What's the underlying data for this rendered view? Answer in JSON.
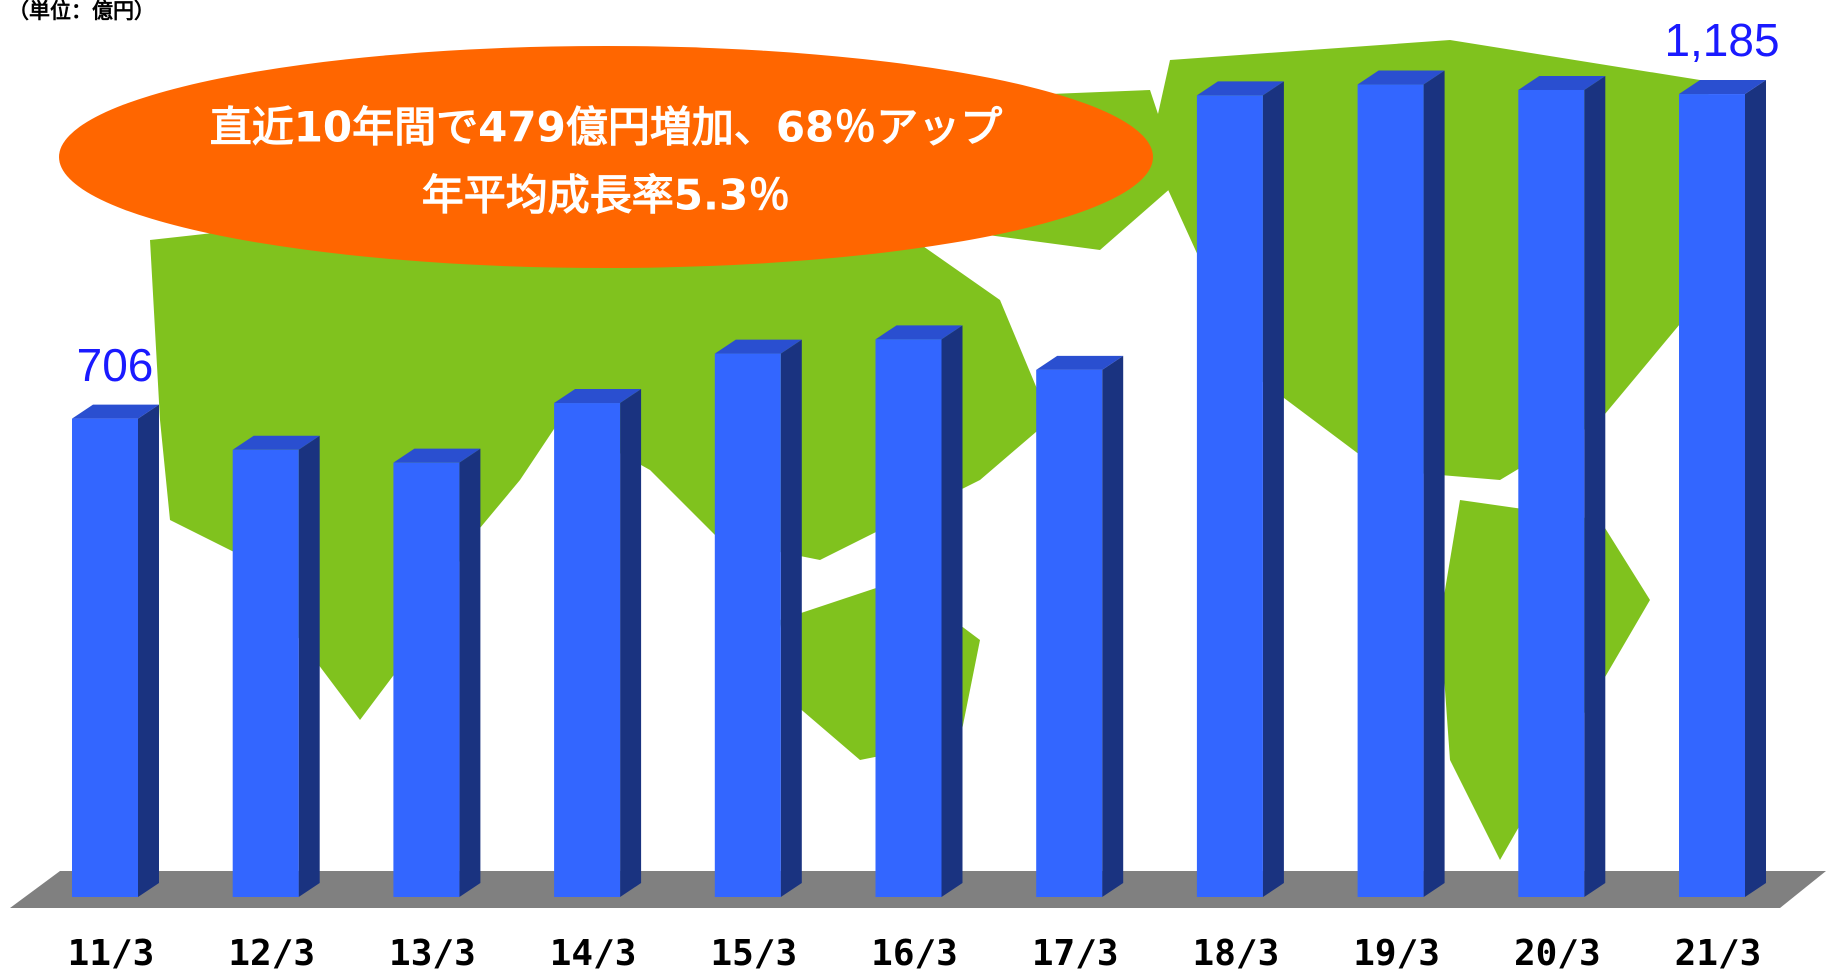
{
  "chart_data": {
    "type": "bar3d",
    "unit_label": "（単位：億円）",
    "annotation": [
      "直近10年間で479億円増加、68％アップ",
      "年平均成長率5.3％"
    ],
    "categories": [
      "11/3",
      "12/3",
      "13/3",
      "14/3",
      "15/3",
      "16/3",
      "17/3",
      "18/3",
      "19/3",
      "20/3",
      "21/3"
    ],
    "values": [
      706,
      660,
      641,
      729,
      802,
      823,
      778,
      1183,
      1199,
      1191,
      1185
    ],
    "value_labels": [
      "706",
      null,
      null,
      null,
      null,
      null,
      null,
      null,
      null,
      null,
      "1,185"
    ],
    "color": "#3366ff",
    "side_color": "#1a3380",
    "top_color": "#2a4fd0",
    "ylim": [
      0,
      1250
    ]
  }
}
